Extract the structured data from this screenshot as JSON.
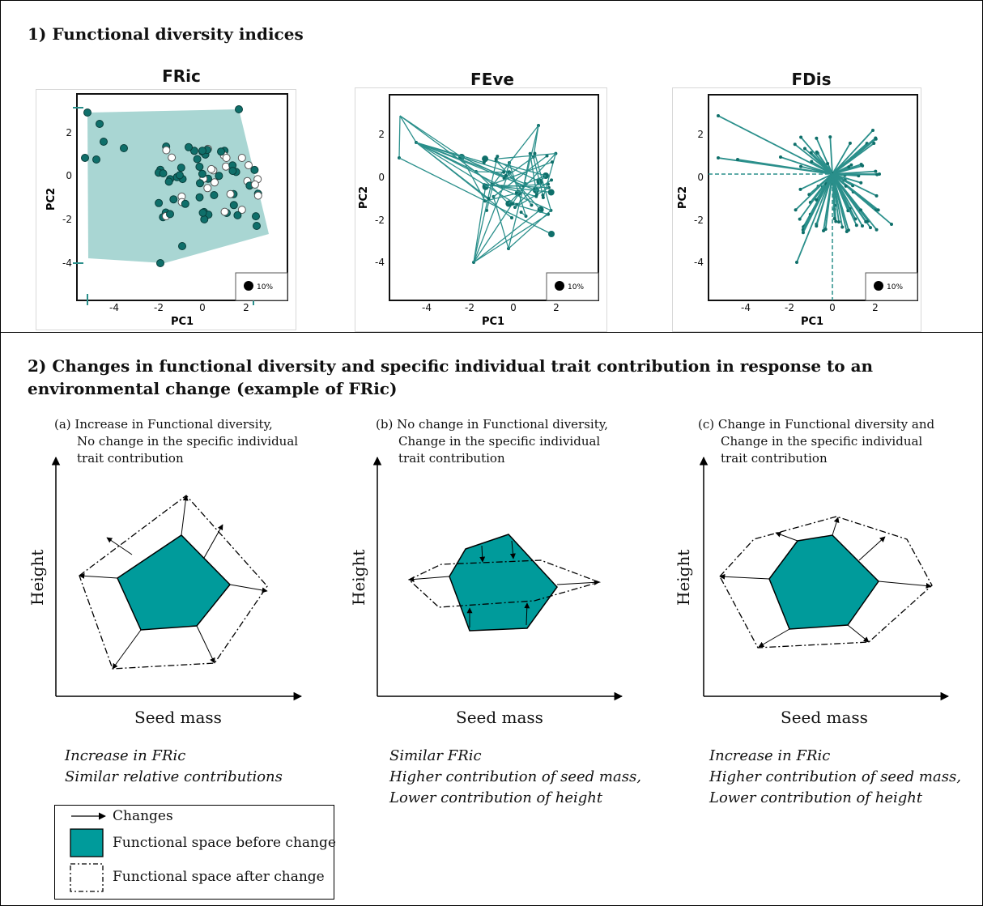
{
  "section1_title": "1) Functional diversity indices",
  "panels": [
    {
      "title": "FRic",
      "legend_label": "10%",
      "xlabel": "PC1",
      "ylabel": "PC2"
    },
    {
      "title": "FEve",
      "legend_label": "10%",
      "xlabel": "PC1",
      "ylabel": "PC2"
    },
    {
      "title": "FDis",
      "legend_label": "10%",
      "xlabel": "PC1",
      "ylabel": "PC2"
    }
  ],
  "x_ticks": [
    "-4",
    "-2",
    "0",
    "2"
  ],
  "y_ticks": [
    "2",
    "0",
    "-2",
    "-4"
  ],
  "section2_title_line1": "2) Changes in functional diversity and specific individual trait contribution in response to an",
  "section2_title_line2": "environmental change (example of FRic)",
  "scenarios": [
    {
      "caption": [
        "(a) Increase in Functional diversity,",
        "No change in the specific individual",
        "trait contribution"
      ],
      "xlabel": "Seed mass",
      "ylabel": "Height",
      "summary": [
        "Increase in FRic",
        "Similar relative contributions"
      ]
    },
    {
      "caption": [
        "(b) No change in Functional diversity,",
        "Change in the specific individual",
        "trait contribution"
      ],
      "xlabel": "Seed mass",
      "ylabel": "Height",
      "summary": [
        "Similar FRic",
        "Higher contribution of seed mass,",
        "Lower contribution of height"
      ]
    },
    {
      "caption": [
        "(c) Change in Functional diversity and",
        "Change in the specific individual",
        "trait contribution"
      ],
      "xlabel": "Seed mass",
      "ylabel": "Height",
      "summary": [
        "Increase in FRic",
        "Higher contribution of seed mass,",
        "Lower contribution of height"
      ]
    }
  ],
  "legend": {
    "changes": "Changes",
    "before": "Functional space before change",
    "after": "Functional space after change"
  },
  "colors": {
    "teal": "#009b9b",
    "teal_dark": "#0f6f6a",
    "teal_light": "#a9d6d3",
    "teal_line": "#2a8f8b"
  }
}
